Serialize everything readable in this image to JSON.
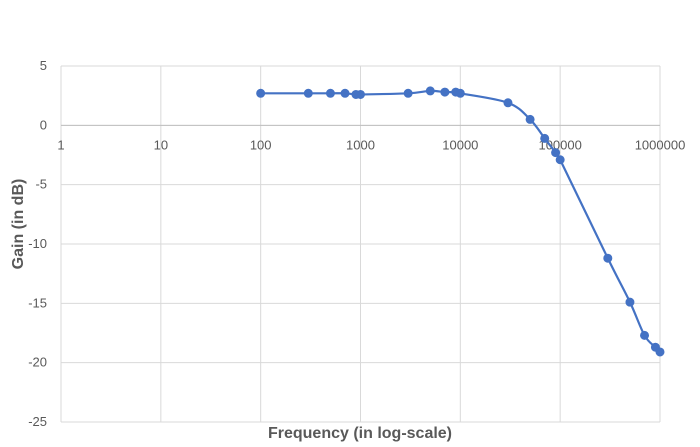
{
  "chart_data": {
    "type": "scatter",
    "title": "",
    "xlabel": "Frequency (in log-scale)",
    "ylabel": "Gain (in dB)",
    "x_scale": "log",
    "xlim": [
      1,
      1000000
    ],
    "ylim": [
      -25,
      5
    ],
    "x_ticks": [
      1,
      10,
      100,
      1000,
      10000,
      100000,
      1000000
    ],
    "x_tick_labels": [
      "1",
      "10",
      "100",
      "1000",
      "10000",
      "100000",
      "1000000"
    ],
    "y_ticks": [
      5,
      0,
      -5,
      -10,
      -15,
      -20,
      -25
    ],
    "y_tick_labels": [
      "5",
      "0",
      "-5",
      "-10",
      "-15",
      "-20",
      "-25"
    ],
    "grid": true,
    "legend": "none",
    "series": [
      {
        "color": "#4472c4",
        "marker": "circle",
        "line": "smooth",
        "x": [
          100,
          300,
          500,
          700,
          900,
          1000,
          3000,
          5000,
          7000,
          9000,
          10000,
          30000,
          50000,
          70000,
          90000,
          100000,
          300000,
          500000,
          700000,
          900000,
          1000000
        ],
        "y": [
          2.7,
          2.7,
          2.7,
          2.7,
          2.6,
          2.6,
          2.7,
          2.9,
          2.8,
          2.8,
          2.7,
          1.9,
          0.5,
          -1.1,
          -2.3,
          -2.9,
          -11.2,
          -14.9,
          -17.7,
          -18.7,
          -19.1
        ]
      }
    ]
  }
}
